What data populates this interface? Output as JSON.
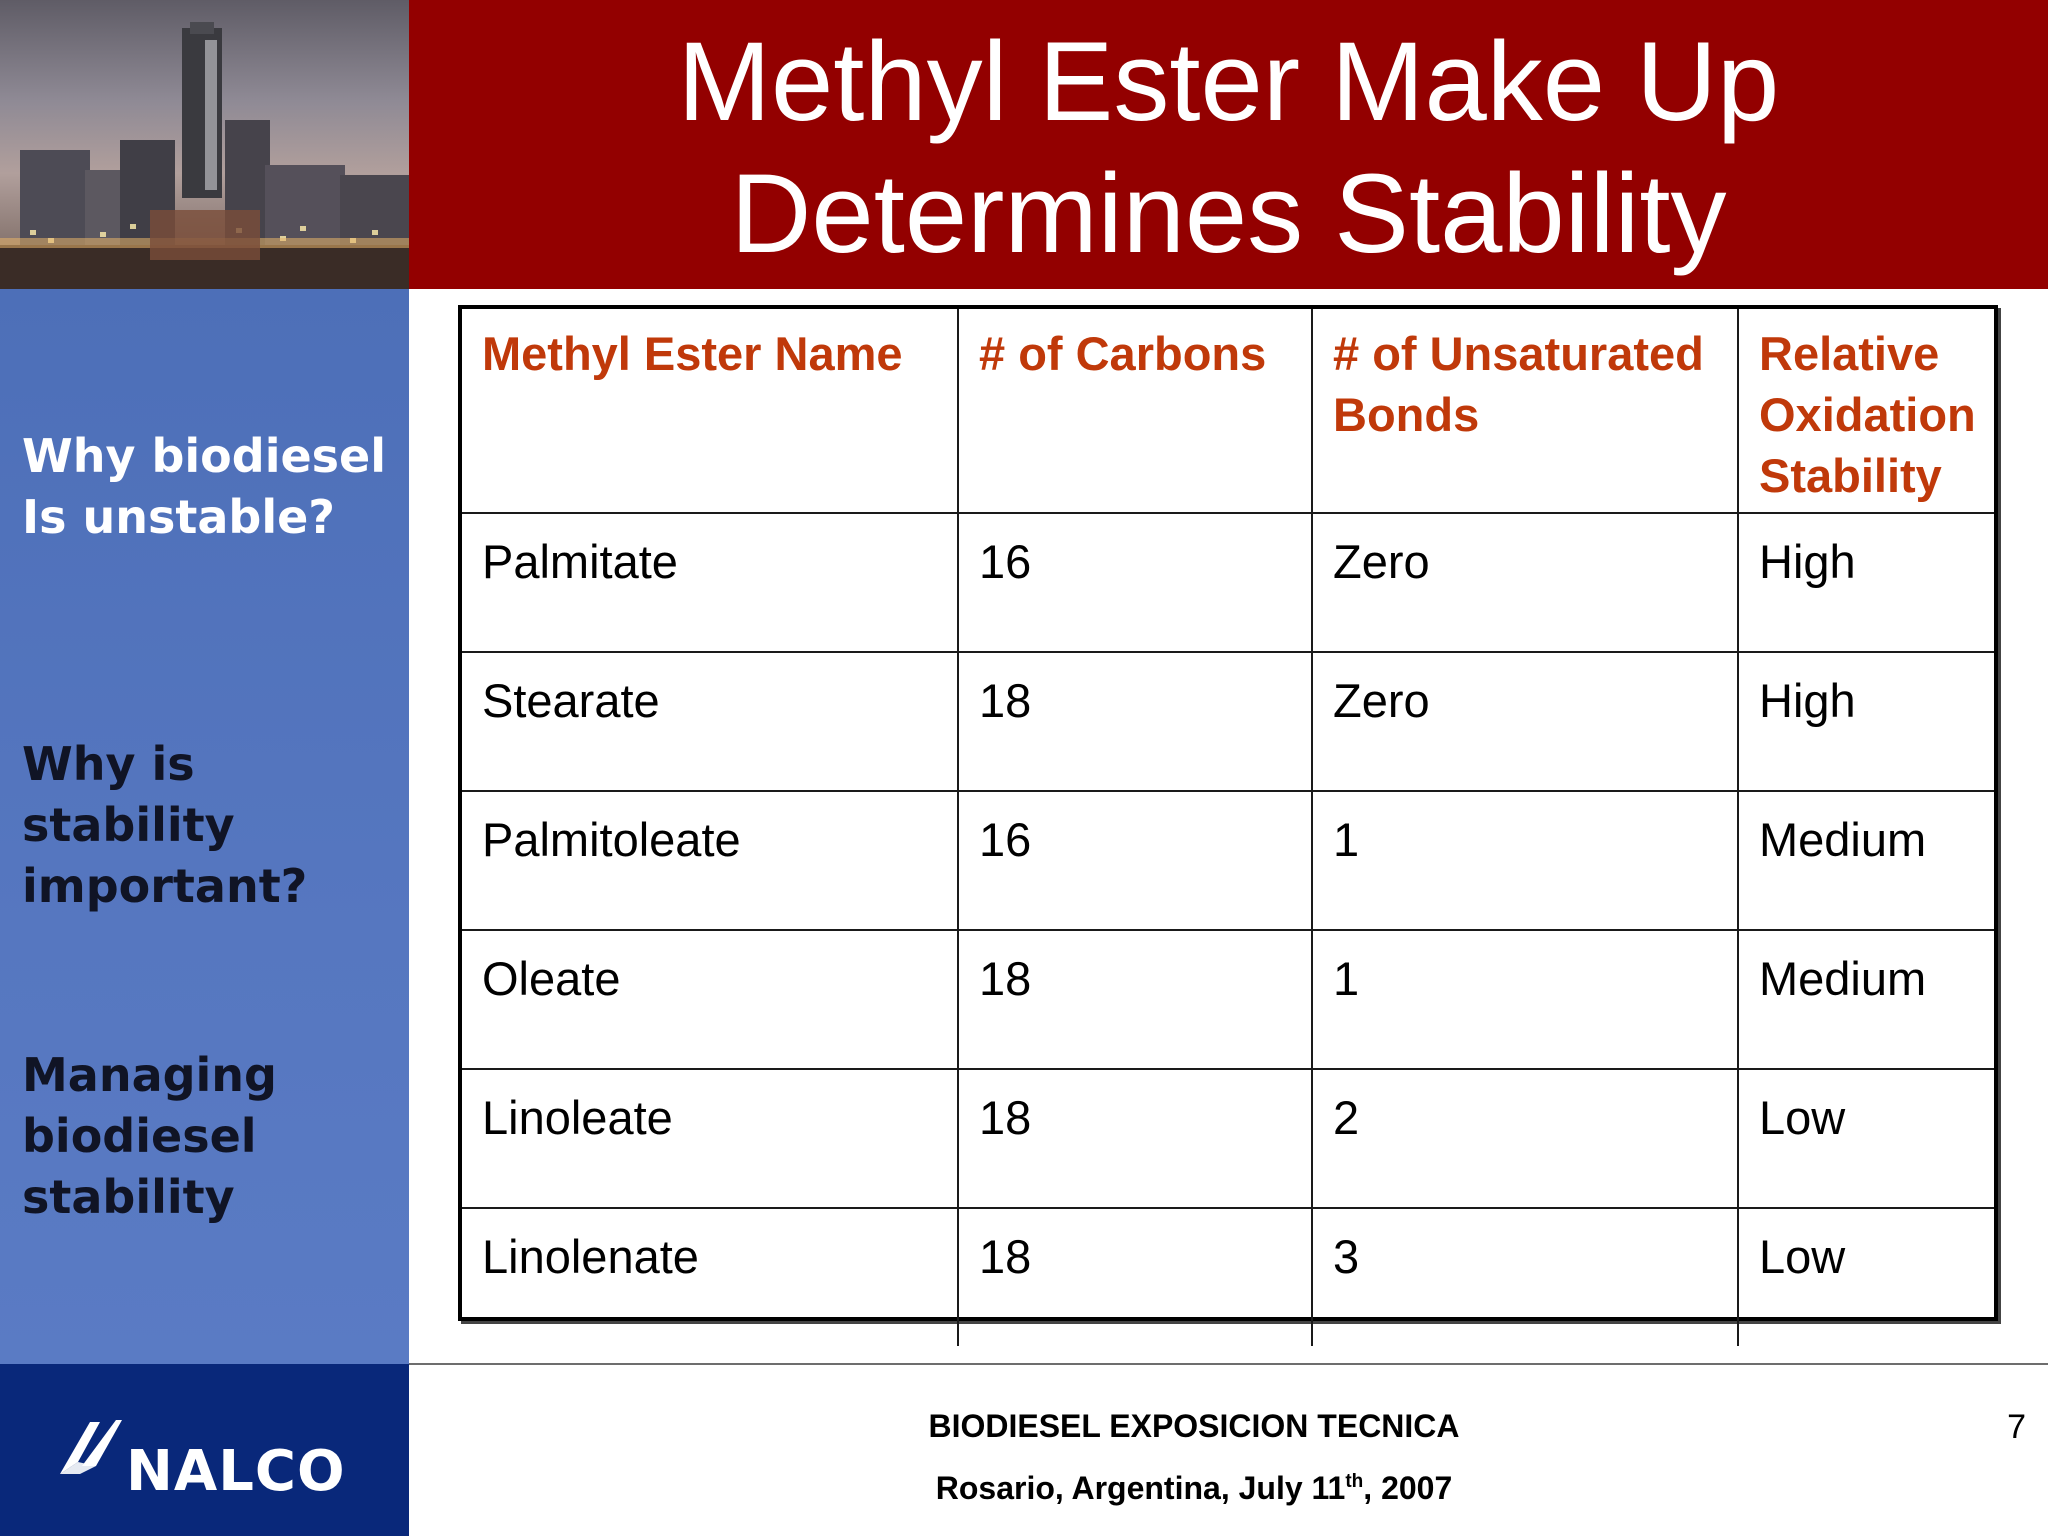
{
  "slide": {
    "title_line1": "Methyl Ester Make Up",
    "title_line2": "Determines Stability",
    "page_number": "7"
  },
  "sidebar": {
    "items": [
      "Why biodiesel Is unstable?",
      "Why is stability important?",
      "Managing biodiesel stability"
    ]
  },
  "table": {
    "headers": [
      "Methyl Ester Name",
      "# of Carbons",
      "# of Unsaturated Bonds",
      "Relative Oxidation Stability"
    ],
    "rows": [
      [
        "Palmitate",
        "16",
        "Zero",
        "High"
      ],
      [
        "Stearate",
        "18",
        "Zero",
        "High"
      ],
      [
        "Palmitoleate",
        "16",
        "1",
        "Medium"
      ],
      [
        "Oleate",
        "18",
        "1",
        "Medium"
      ],
      [
        "Linoleate",
        "18",
        "2",
        "Low"
      ],
      [
        "Linolenate",
        "18",
        "3",
        "Low"
      ]
    ]
  },
  "footer": {
    "logo_text": "NALCO",
    "event": "BIODIESEL EXPOSICION TECNICA",
    "location_prefix": "Rosario, Argentina, July 11",
    "location_suffix_sup": "th",
    "location_rest": ", 2007"
  },
  "colors": {
    "title_bar": "#930000",
    "sidebar": "#5677c0",
    "header_text": "#c0390a",
    "footer_logo_bg": "#09287a"
  }
}
